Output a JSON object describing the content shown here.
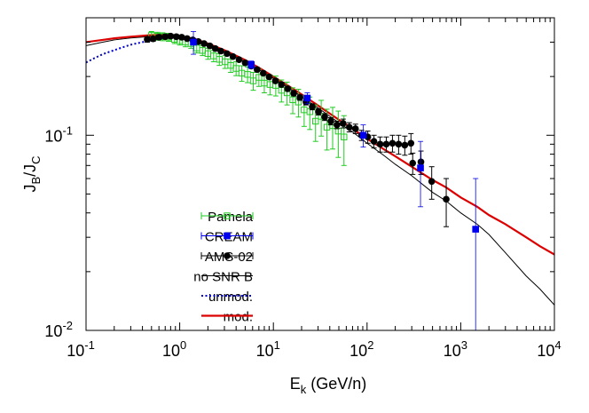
{
  "chart_data": {
    "type": "scatter",
    "x_scale": "log",
    "y_scale": "log",
    "xlim": [
      0.1,
      10000
    ],
    "ylim": [
      0.01,
      0.4
    ],
    "grid": false,
    "legend_position": "bottom-left",
    "x_ticks": [
      {
        "value": 0.1,
        "base": "10",
        "exp": "-1"
      },
      {
        "value": 1,
        "base": "10",
        "exp": "0"
      },
      {
        "value": 10,
        "base": "10",
        "exp": "1"
      },
      {
        "value": 100,
        "base": "10",
        "exp": "2"
      },
      {
        "value": 1000,
        "base": "10",
        "exp": "3"
      },
      {
        "value": 10000,
        "base": "10",
        "exp": "4"
      }
    ],
    "y_ticks": [
      {
        "value": 0.01,
        "base": "10",
        "exp": "-2"
      },
      {
        "value": 0.1,
        "base": "10",
        "exp": "-1"
      }
    ],
    "xlabel": {
      "main": "E",
      "sub": "k",
      "rest": " (GeV/n)"
    },
    "ylabel": {
      "p1": "J",
      "s1": "B",
      "p2": "/J",
      "s2": "C"
    },
    "colors": {
      "pamela": "#22cc22",
      "cream": "#0000ee",
      "ams": "#000000",
      "nosnr": "#000000",
      "unmod": "#0000cc",
      "mod": "#dd0000"
    },
    "series": [
      {
        "name": "Pamela",
        "kind": "points",
        "marker": "open-square",
        "color": "#22cc22",
        "points": [
          [
            0.5,
            0.325,
            0.015
          ],
          [
            0.58,
            0.322,
            0.015
          ],
          [
            0.66,
            0.32,
            0.015
          ],
          [
            0.76,
            0.318,
            0.015
          ],
          [
            0.88,
            0.31,
            0.015
          ],
          [
            1.0,
            0.305,
            0.015
          ],
          [
            1.15,
            0.3,
            0.016
          ],
          [
            1.32,
            0.295,
            0.016
          ],
          [
            1.52,
            0.28,
            0.016
          ],
          [
            1.75,
            0.272,
            0.016
          ],
          [
            2.0,
            0.262,
            0.017
          ],
          [
            2.3,
            0.255,
            0.017
          ],
          [
            2.65,
            0.245,
            0.017
          ],
          [
            3.05,
            0.238,
            0.018
          ],
          [
            3.5,
            0.228,
            0.018
          ],
          [
            4.0,
            0.22,
            0.018
          ],
          [
            4.6,
            0.208,
            0.019
          ],
          [
            5.3,
            0.205,
            0.019
          ],
          [
            6.1,
            0.19,
            0.02
          ],
          [
            7.0,
            0.198,
            0.02
          ],
          [
            8.0,
            0.185,
            0.02
          ],
          [
            9.2,
            0.182,
            0.021
          ],
          [
            10.6,
            0.18,
            0.021
          ],
          [
            12.2,
            0.17,
            0.022
          ],
          [
            14.0,
            0.165,
            0.022
          ],
          [
            16.1,
            0.152,
            0.023
          ],
          [
            18.5,
            0.148,
            0.024
          ],
          [
            21.3,
            0.135,
            0.024
          ],
          [
            24.5,
            0.132,
            0.025
          ],
          [
            28.2,
            0.118,
            0.025
          ],
          [
            32.4,
            0.125,
            0.026
          ],
          [
            37.3,
            0.11,
            0.026
          ],
          [
            42.9,
            0.112,
            0.027
          ],
          [
            49.3,
            0.105,
            0.028
          ],
          [
            56.7,
            0.098,
            0.028
          ]
        ]
      },
      {
        "name": "CREAM",
        "kind": "points",
        "marker": "filled-square",
        "color": "#0000ee",
        "points": [
          [
            1.4,
            0.3,
            0.04
          ],
          [
            5.8,
            0.23,
            0.01
          ],
          [
            23,
            0.155,
            0.01
          ],
          [
            91,
            0.1,
            0.013
          ],
          [
            372,
            0.068,
            0.025
          ],
          [
            1442,
            0.033,
            0.027
          ]
        ]
      },
      {
        "name": "AMS-02",
        "kind": "points",
        "marker": "filled-circle",
        "color": "#000000",
        "points": [
          [
            0.45,
            0.31,
            0.01
          ],
          [
            0.52,
            0.312,
            0.009
          ],
          [
            0.6,
            0.318,
            0.009
          ],
          [
            0.7,
            0.32,
            0.008
          ],
          [
            0.8,
            0.322,
            0.008
          ],
          [
            0.92,
            0.32,
            0.008
          ],
          [
            1.05,
            0.318,
            0.007
          ],
          [
            1.2,
            0.313,
            0.007
          ],
          [
            1.38,
            0.308,
            0.007
          ],
          [
            1.58,
            0.302,
            0.006
          ],
          [
            1.82,
            0.295,
            0.006
          ],
          [
            2.1,
            0.287,
            0.006
          ],
          [
            2.4,
            0.278,
            0.006
          ],
          [
            2.75,
            0.27,
            0.006
          ],
          [
            3.2,
            0.262,
            0.005
          ],
          [
            3.7,
            0.253,
            0.005
          ],
          [
            4.3,
            0.244,
            0.005
          ],
          [
            5.0,
            0.235,
            0.005
          ],
          [
            5.8,
            0.226,
            0.005
          ],
          [
            6.7,
            0.217,
            0.005
          ],
          [
            7.8,
            0.208,
            0.005
          ],
          [
            9.0,
            0.199,
            0.005
          ],
          [
            10.5,
            0.19,
            0.005
          ],
          [
            12.2,
            0.182,
            0.005
          ],
          [
            14.2,
            0.173,
            0.005
          ],
          [
            16.5,
            0.164,
            0.005
          ],
          [
            19.2,
            0.156,
            0.005
          ],
          [
            22.3,
            0.148,
            0.005
          ],
          [
            26,
            0.14,
            0.005
          ],
          [
            30.3,
            0.132,
            0.005
          ],
          [
            35.3,
            0.124,
            0.005
          ],
          [
            41,
            0.118,
            0.005
          ],
          [
            47.7,
            0.113,
            0.005
          ],
          [
            55.5,
            0.115,
            0.006
          ],
          [
            64.6,
            0.11,
            0.006
          ],
          [
            75.2,
            0.108,
            0.006
          ],
          [
            87.5,
            0.1,
            0.006
          ],
          [
            101.8,
            0.098,
            0.007
          ],
          [
            118.5,
            0.093,
            0.007
          ],
          [
            137.9,
            0.09,
            0.008
          ],
          [
            160.4,
            0.09,
            0.008
          ],
          [
            186.7,
            0.091,
            0.009
          ],
          [
            217.2,
            0.09,
            0.01
          ],
          [
            252.8,
            0.089,
            0.01
          ],
          [
            294.1,
            0.091,
            0.011
          ],
          [
            307,
            0.072,
            0.009
          ],
          [
            376,
            0.073,
            0.01
          ],
          [
            490,
            0.058,
            0.011
          ],
          [
            700,
            0.047,
            0.013
          ]
        ]
      },
      {
        "name": "no SNR B",
        "kind": "line",
        "style": "solid-thin",
        "color": "#000000",
        "points": [
          [
            0.1,
            0.288
          ],
          [
            0.15,
            0.3
          ],
          [
            0.2,
            0.308
          ],
          [
            0.3,
            0.315
          ],
          [
            0.5,
            0.321
          ],
          [
            0.7,
            0.322
          ],
          [
            1,
            0.318
          ],
          [
            1.5,
            0.305
          ],
          [
            2,
            0.29
          ],
          [
            3,
            0.268
          ],
          [
            5,
            0.238
          ],
          [
            7,
            0.217
          ],
          [
            10,
            0.196
          ],
          [
            15,
            0.173
          ],
          [
            20,
            0.158
          ],
          [
            30,
            0.138
          ],
          [
            50,
            0.116
          ],
          [
            70,
            0.104
          ],
          [
            100,
            0.091
          ],
          [
            150,
            0.079
          ],
          [
            200,
            0.071
          ],
          [
            300,
            0.062
          ],
          [
            500,
            0.051
          ],
          [
            700,
            0.046
          ],
          [
            1000,
            0.04
          ],
          [
            1500,
            0.035
          ],
          [
            2000,
            0.031
          ],
          [
            3000,
            0.025
          ],
          [
            5000,
            0.019
          ],
          [
            7000,
            0.0163
          ],
          [
            10000,
            0.0135
          ]
        ]
      },
      {
        "name": "unmod.",
        "kind": "line",
        "style": "dotted",
        "color": "#0000cc",
        "points": [
          [
            0.1,
            0.236
          ],
          [
            0.12,
            0.247
          ],
          [
            0.15,
            0.26
          ],
          [
            0.2,
            0.273
          ],
          [
            0.25,
            0.283
          ],
          [
            0.3,
            0.291
          ],
          [
            0.4,
            0.3
          ],
          [
            0.5,
            0.307
          ],
          [
            0.6,
            0.311
          ],
          [
            0.7,
            0.314
          ],
          [
            0.8,
            0.316
          ],
          [
            0.9,
            0.317
          ],
          [
            1.0,
            0.317
          ]
        ]
      },
      {
        "name": "mod.",
        "kind": "line",
        "style": "solid-thick",
        "color": "#dd0000",
        "points": [
          [
            0.1,
            0.3
          ],
          [
            0.15,
            0.308
          ],
          [
            0.2,
            0.314
          ],
          [
            0.3,
            0.32
          ],
          [
            0.5,
            0.326
          ],
          [
            0.7,
            0.327
          ],
          [
            1,
            0.323
          ],
          [
            1.5,
            0.31
          ],
          [
            2,
            0.295
          ],
          [
            3,
            0.273
          ],
          [
            5,
            0.243
          ],
          [
            7,
            0.222
          ],
          [
            10,
            0.2
          ],
          [
            15,
            0.177
          ],
          [
            20,
            0.162
          ],
          [
            30,
            0.142
          ],
          [
            50,
            0.12
          ],
          [
            70,
            0.108
          ],
          [
            100,
            0.096
          ],
          [
            150,
            0.085
          ],
          [
            200,
            0.078
          ],
          [
            300,
            0.069
          ],
          [
            500,
            0.059
          ],
          [
            700,
            0.054
          ],
          [
            1000,
            0.048
          ],
          [
            1500,
            0.043
          ],
          [
            2000,
            0.039
          ],
          [
            3000,
            0.035
          ],
          [
            5000,
            0.03
          ],
          [
            7000,
            0.027
          ],
          [
            10000,
            0.0245
          ]
        ]
      }
    ]
  }
}
